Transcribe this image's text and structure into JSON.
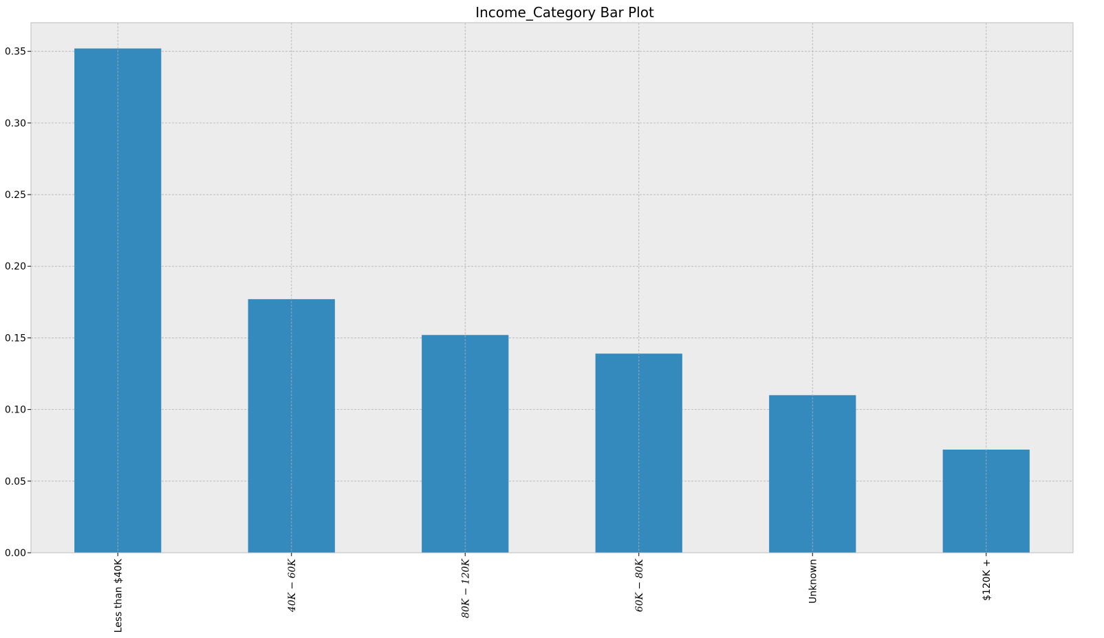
{
  "chart_data": {
    "type": "bar",
    "title": "Income_Category Bar Plot",
    "categories": [
      "Less than $40K",
      "$40K - $60K",
      "$80K - $120K",
      "$60K - $80K",
      "Unknown",
      "$120K +"
    ],
    "tick_labels_rendered": [
      "Less than $40K",
      "40K − 60K",
      "80K − 120K",
      "60K − 80K",
      "Unknown",
      "$120K +"
    ],
    "values": [
      0.352,
      0.177,
      0.152,
      0.139,
      0.11,
      0.072
    ],
    "xlabel": "",
    "ylabel": "",
    "ylim": [
      0,
      0.37
    ],
    "yticks": [
      0.0,
      0.05,
      0.1,
      0.15,
      0.2,
      0.25,
      0.3,
      0.35
    ],
    "ytick_labels": [
      "0.00",
      "0.05",
      "0.10",
      "0.15",
      "0.20",
      "0.25",
      "0.30",
      "0.35"
    ],
    "grid": true,
    "colors": {
      "bar": "#348abd",
      "plot_background": "#ececec",
      "grid": "#b0b0b0",
      "spine": "#bcbcbc"
    }
  }
}
